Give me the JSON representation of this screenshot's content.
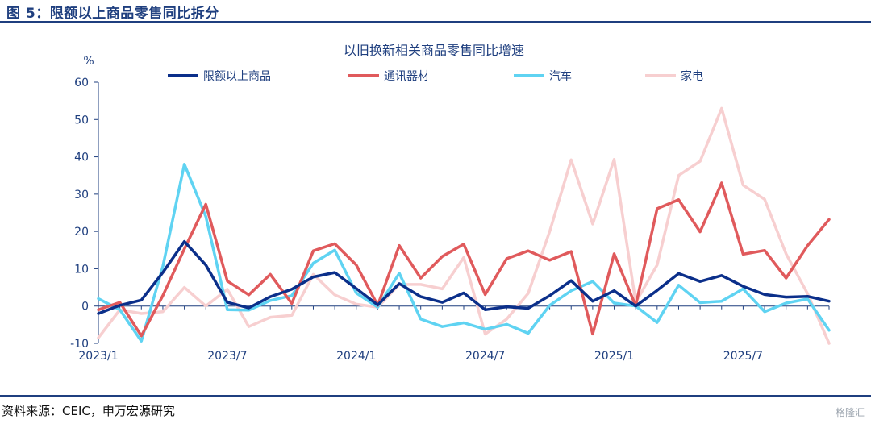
{
  "header": {
    "figure_title": "图 5：限额以上商品零售同比拆分"
  },
  "footer": {
    "source": "资料来源：CEIC，申万宏源研究",
    "watermark": "格隆汇"
  },
  "chart_data": {
    "type": "line",
    "title": "以旧换新相关商品零售同比增速",
    "ylabel": "%",
    "ylim": [
      -10,
      60
    ],
    "yticks": [
      -10,
      0,
      10,
      20,
      30,
      40,
      50,
      60
    ],
    "grid": false,
    "legend_position": "top",
    "x_tick_labels": [
      {
        "index": 0,
        "label": "2023/1"
      },
      {
        "index": 6,
        "label": "2023/7"
      },
      {
        "index": 12,
        "label": "2024/1"
      },
      {
        "index": 18,
        "label": "2024/7"
      },
      {
        "index": 24,
        "label": "2025/1"
      },
      {
        "index": 30,
        "label": "2025/7"
      }
    ],
    "x": [
      "2023/1",
      "2023/2",
      "2023/3",
      "2023/4",
      "2023/5",
      "2023/6",
      "2023/7",
      "2023/8",
      "2023/9",
      "2023/10",
      "2023/11",
      "2023/12",
      "2024/1",
      "2024/2",
      "2024/3",
      "2024/4",
      "2024/5",
      "2024/6",
      "2024/7",
      "2024/8",
      "2024/9",
      "2024/10",
      "2024/11",
      "2024/12",
      "2025/1",
      "2025/2",
      "2025/3",
      "2025/4",
      "2025/5",
      "2025/6",
      "2025/7",
      "2025/8",
      "2025/9",
      "2025/10",
      "2025/11"
    ],
    "series": [
      {
        "name": "限额以上商品",
        "color": "#0b2f8a",
        "width": 3.5,
        "values": [
          -2.0,
          0.2,
          1.6,
          9.0,
          17.3,
          11.0,
          1.0,
          -0.5,
          2.5,
          4.5,
          7.8,
          9.0,
          4.7,
          0.3,
          6.0,
          2.5,
          1.0,
          3.5,
          -1.0,
          -0.2,
          -0.6,
          2.8,
          6.8,
          1.3,
          4.1,
          0.0,
          4.2,
          8.7,
          6.6,
          8.2,
          5.3,
          3.1,
          2.4,
          2.6,
          1.3
        ]
      },
      {
        "name": "通讯器材",
        "color": "#e05a5c",
        "width": 3.5,
        "values": [
          -1.0,
          1.0,
          -8.0,
          2.8,
          15.3,
          27.3,
          6.7,
          3.0,
          8.5,
          0.7,
          14.8,
          16.7,
          11.0,
          0.2,
          16.2,
          7.5,
          13.3,
          16.6,
          3.1,
          12.7,
          14.8,
          12.3,
          14.6,
          -7.5,
          14.0,
          0.1,
          26.1,
          28.5,
          19.9,
          33.0,
          13.9,
          14.9,
          7.5,
          16.2,
          23.2
        ]
      },
      {
        "name": "汽车",
        "color": "#5fd3f2",
        "width": 3.5,
        "values": [
          2.0,
          -1.0,
          -9.4,
          10.6,
          38.0,
          24.0,
          -1.0,
          -1.1,
          1.5,
          2.8,
          11.5,
          15.0,
          3.5,
          -0.3,
          8.8,
          -3.5,
          -5.5,
          -4.5,
          -6.2,
          -4.9,
          -7.3,
          0.2,
          4.1,
          6.6,
          0.8,
          0.0,
          -4.4,
          5.6,
          0.9,
          1.3,
          4.6,
          -1.5,
          0.8,
          1.9,
          -6.5
        ]
      },
      {
        "name": "家电",
        "color": "#f7cfd0",
        "width": 3.5,
        "values": [
          -8.5,
          -1.0,
          -2.0,
          -1.5,
          5.0,
          0.0,
          4.5,
          -5.5,
          -3.0,
          -2.5,
          8.5,
          3.0,
          0.5,
          -0.3,
          5.8,
          5.8,
          4.6,
          13.0,
          -7.5,
          -3.5,
          3.4,
          20.0,
          39.2,
          22.0,
          39.3,
          1.0,
          11.0,
          35.0,
          38.8,
          53.0,
          32.4,
          28.6,
          14.0,
          3.3,
          -10.0
        ]
      }
    ]
  }
}
